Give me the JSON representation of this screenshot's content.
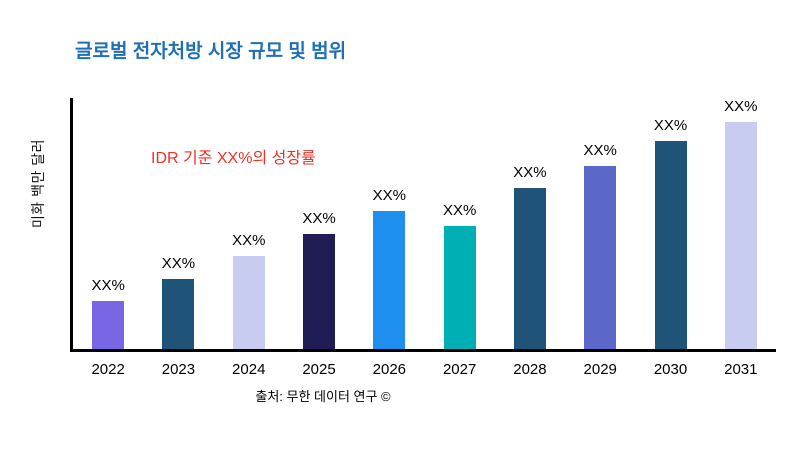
{
  "chart_data": {
    "type": "bar",
    "title": "글로벌 전자처방 시장 규모 및 범위",
    "annotation": "IDR 기준 XX%의 성장률",
    "ylabel": "미화 백만 달러",
    "xlabel": "",
    "source": "출처: 무한 데이터 연구 ©",
    "categories": [
      "2022",
      "2023",
      "2024",
      "2025",
      "2026",
      "2027",
      "2028",
      "2029",
      "2030",
      "2031"
    ],
    "values": [
      19,
      28,
      37,
      46,
      55,
      49,
      64,
      73,
      83,
      92
    ],
    "bar_labels": [
      "XX%",
      "XX%",
      "XX%",
      "XX%",
      "XX%",
      "XX%",
      "XX%",
      "XX%",
      "XX%",
      "XX%"
    ],
    "bar_colors": [
      "#7866E4",
      "#1F5478",
      "#C8CCF0",
      "#201D56",
      "#1E8FEF",
      "#00AFB4",
      "#1F5478",
      "#5B68C9",
      "#1F5478",
      "#C8CCF0"
    ],
    "ylim": [
      0,
      100
    ],
    "grid": false,
    "legend": false,
    "title_color": "#1F6FB5",
    "annotation_color": "#EF3124",
    "axis_color": "#000000"
  }
}
